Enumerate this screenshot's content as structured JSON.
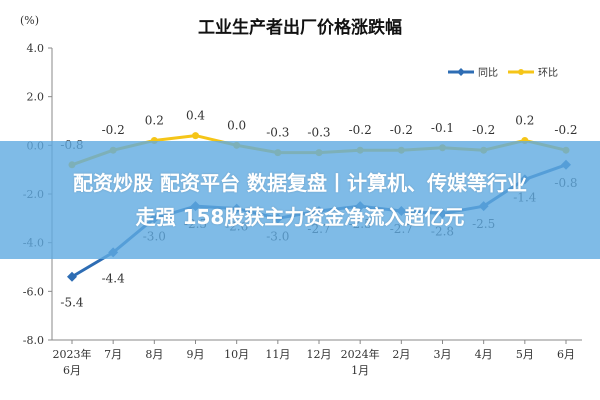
{
  "chart_data": {
    "type": "line",
    "title": "工业生产者出厂价格涨跌幅",
    "unit": "(%)",
    "categories": [
      "2023年\n6月",
      "7月",
      "8月",
      "9月",
      "10月",
      "11月",
      "12月",
      "2024年\n1月",
      "2月",
      "3月",
      "4月",
      "5月",
      "6月"
    ],
    "series": [
      {
        "name": "同比",
        "color": "#2e6db4",
        "values": [
          -5.4,
          -4.4,
          -3.0,
          -2.5,
          -2.6,
          -3.0,
          -2.7,
          -2.5,
          -2.7,
          -2.8,
          -2.5,
          -1.4,
          -0.8
        ],
        "labels": [
          "-5.4",
          "-4.4",
          "-3.0",
          "-2.5",
          "-2.6",
          "-3.0",
          "-2.7",
          "-2.5",
          "-2.7",
          "-2.8",
          "-2.5",
          "-1.4",
          "-0.8"
        ]
      },
      {
        "name": "环比",
        "color": "#f5c518",
        "values": [
          -0.8,
          -0.2,
          0.2,
          0.4,
          0.0,
          -0.3,
          -0.3,
          -0.2,
          -0.2,
          -0.1,
          -0.2,
          0.2,
          -0.2
        ],
        "labels": [
          "-0.8",
          "-0.2",
          "0.2",
          "0.4",
          "0.0",
          "-0.3",
          "-0.3",
          "-0.2",
          "-0.2",
          "-0.1",
          "-0.2",
          "0.2",
          "-0.2"
        ]
      }
    ],
    "ylim": [
      -8.0,
      4.0
    ],
    "yticks": [
      "4.0",
      "2.0",
      "0.0",
      "-2.0",
      "-4.0",
      "-6.0",
      "-8.0"
    ],
    "legend_position": "top-right",
    "grid": false
  },
  "banner": {
    "line1": "配资炒股 配资平台 数据复盘丨计算机、传媒等行业",
    "line2": "走强  158股获主力资金净流入超亿元"
  }
}
